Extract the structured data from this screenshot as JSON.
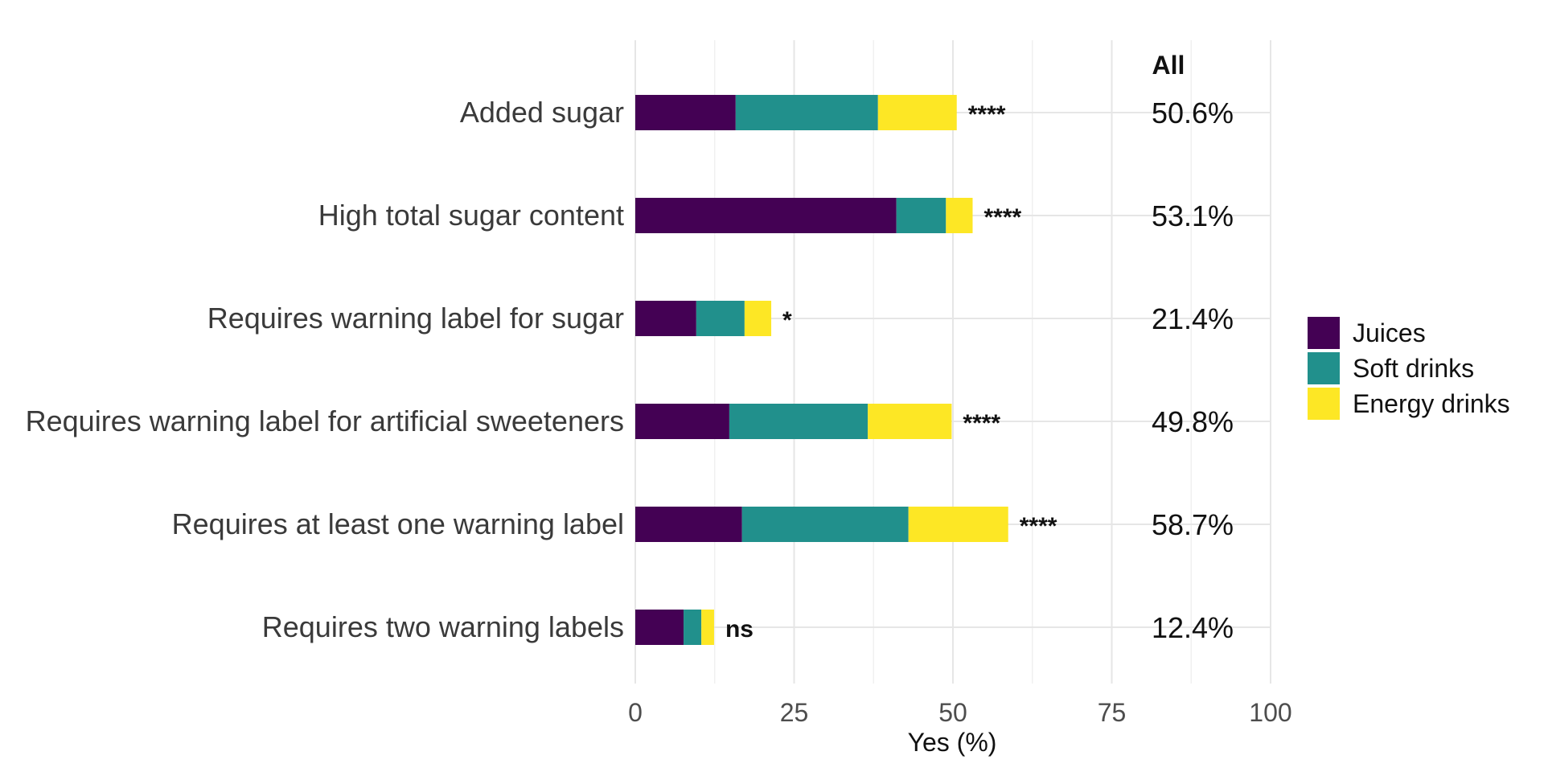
{
  "chart_data": {
    "type": "bar",
    "orientation": "horizontal",
    "stacked": true,
    "title": "",
    "xlabel": "Yes (%)",
    "ylabel": "",
    "xlim": [
      0,
      100
    ],
    "xticks": [
      "0",
      "25",
      "50",
      "75",
      "100"
    ],
    "grid": true,
    "categories": [
      "Added sugar",
      "High total sugar content",
      "Requires warning label for sugar",
      "Requires warning label for artificial sweeteners",
      "Requires at least one warning label",
      "Requires two warning labels"
    ],
    "series": [
      {
        "name": "Juices",
        "color": "#440154",
        "values": [
          15.8,
          41.1,
          9.6,
          14.8,
          16.8,
          7.6
        ]
      },
      {
        "name": "Soft drinks",
        "color": "#21908c",
        "values": [
          22.4,
          7.8,
          7.6,
          21.8,
          26.2,
          2.8
        ]
      },
      {
        "name": "Energy drinks",
        "color": "#fde725",
        "values": [
          12.4,
          4.2,
          4.2,
          13.2,
          15.7,
          2.0
        ]
      }
    ],
    "significance": [
      "****",
      "****",
      "*",
      "****",
      "****",
      "ns"
    ],
    "all_header": "All",
    "all_values": [
      "50.6%",
      "53.1%",
      "21.4%",
      "49.8%",
      "58.7%",
      "12.4%"
    ],
    "legend_position": "right"
  }
}
